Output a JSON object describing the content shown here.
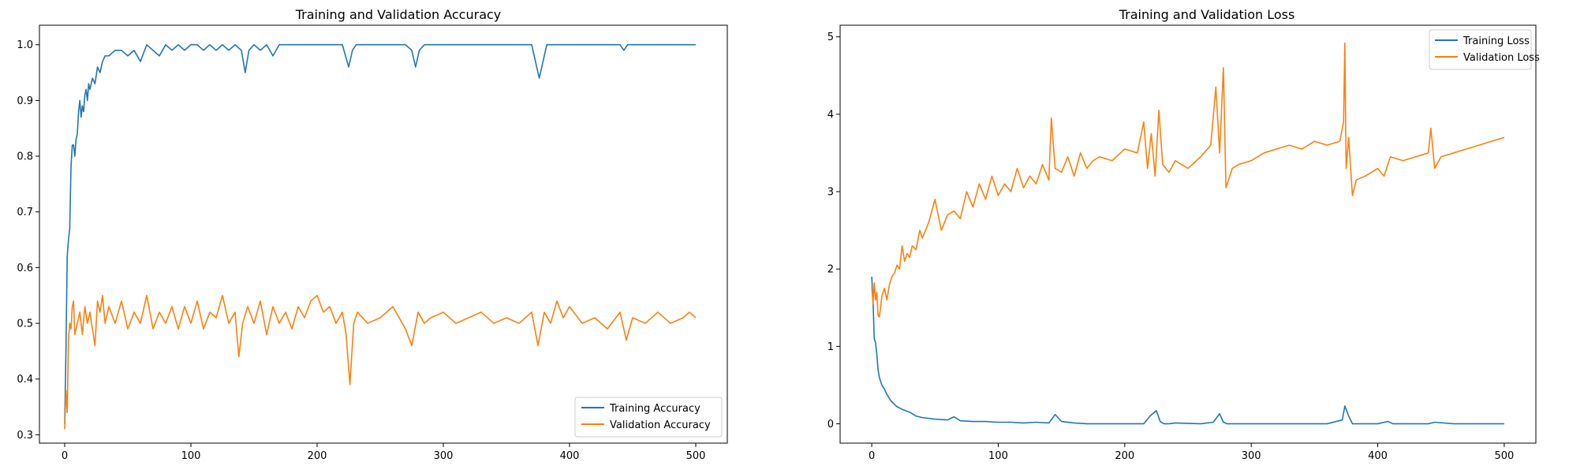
{
  "chart_data": [
    {
      "type": "line",
      "title": "Training and Validation Accuracy",
      "xlabel": "",
      "ylabel": "",
      "xlim": [
        -20,
        525
      ],
      "ylim": [
        0.285,
        1.035
      ],
      "xticks": [
        0,
        100,
        200,
        300,
        400,
        500
      ],
      "yticks": [
        0.3,
        0.4,
        0.5,
        0.6,
        0.7,
        0.8,
        0.9,
        1.0
      ],
      "ytick_labels": [
        "0.3",
        "0.4",
        "0.5",
        "0.6",
        "0.7",
        "0.8",
        "0.9",
        "1.0"
      ],
      "grid": false,
      "legend_position": "lower right",
      "series": [
        {
          "name": "Training Accuracy",
          "color": "#1f77b4",
          "x": [
            0,
            1,
            2,
            3,
            4,
            5,
            6,
            7,
            8,
            9,
            10,
            11,
            12,
            13,
            14,
            15,
            16,
            17,
            18,
            19,
            20,
            22,
            24,
            26,
            28,
            30,
            32,
            35,
            40,
            45,
            50,
            55,
            60,
            65,
            70,
            75,
            80,
            85,
            90,
            95,
            100,
            105,
            110,
            115,
            120,
            125,
            130,
            135,
            140,
            143,
            146,
            150,
            155,
            160,
            165,
            170,
            180,
            190,
            200,
            210,
            220,
            225,
            228,
            231,
            235,
            240,
            250,
            260,
            270,
            275,
            278,
            281,
            285,
            290,
            300,
            310,
            320,
            330,
            340,
            350,
            360,
            370,
            373,
            376,
            379,
            382,
            390,
            400,
            410,
            420,
            430,
            440,
            443,
            446,
            450,
            460,
            470,
            480,
            490,
            500
          ],
          "y": [
            0.32,
            0.45,
            0.62,
            0.65,
            0.67,
            0.78,
            0.82,
            0.82,
            0.8,
            0.83,
            0.84,
            0.88,
            0.9,
            0.87,
            0.89,
            0.88,
            0.91,
            0.92,
            0.9,
            0.93,
            0.92,
            0.94,
            0.93,
            0.96,
            0.95,
            0.97,
            0.98,
            0.98,
            0.99,
            0.99,
            0.98,
            0.99,
            0.97,
            1.0,
            0.99,
            0.98,
            1.0,
            0.99,
            1.0,
            0.99,
            1.0,
            1.0,
            0.99,
            1.0,
            0.99,
            1.0,
            0.99,
            1.0,
            0.99,
            0.95,
            0.99,
            1.0,
            0.99,
            1.0,
            0.98,
            1.0,
            1.0,
            1.0,
            1.0,
            1.0,
            1.0,
            0.96,
            0.99,
            1.0,
            1.0,
            1.0,
            1.0,
            1.0,
            1.0,
            0.99,
            0.96,
            0.99,
            1.0,
            1.0,
            1.0,
            1.0,
            1.0,
            1.0,
            1.0,
            1.0,
            1.0,
            1.0,
            0.97,
            0.94,
            0.97,
            1.0,
            1.0,
            1.0,
            1.0,
            1.0,
            1.0,
            1.0,
            0.99,
            1.0,
            1.0,
            1.0,
            1.0,
            1.0,
            1.0,
            1.0
          ]
        },
        {
          "name": "Validation Accuracy",
          "color": "#ff7f0e",
          "x": [
            0,
            1,
            2,
            3,
            4,
            5,
            6,
            7,
            8,
            10,
            12,
            14,
            16,
            18,
            20,
            22,
            24,
            26,
            28,
            30,
            32,
            35,
            40,
            45,
            50,
            55,
            60,
            65,
            70,
            75,
            80,
            85,
            90,
            95,
            100,
            105,
            110,
            115,
            120,
            125,
            130,
            135,
            138,
            141,
            145,
            150,
            155,
            160,
            165,
            170,
            175,
            180,
            185,
            190,
            195,
            200,
            205,
            210,
            215,
            220,
            223,
            226,
            229,
            232,
            240,
            250,
            260,
            270,
            275,
            280,
            285,
            290,
            300,
            310,
            320,
            330,
            340,
            350,
            360,
            370,
            375,
            380,
            385,
            390,
            395,
            400,
            410,
            420,
            430,
            440,
            445,
            450,
            460,
            470,
            480,
            490,
            495,
            500
          ],
          "y": [
            0.31,
            0.38,
            0.34,
            0.47,
            0.5,
            0.49,
            0.53,
            0.54,
            0.48,
            0.5,
            0.52,
            0.48,
            0.53,
            0.5,
            0.52,
            0.49,
            0.46,
            0.54,
            0.52,
            0.55,
            0.5,
            0.53,
            0.5,
            0.54,
            0.49,
            0.52,
            0.5,
            0.55,
            0.49,
            0.52,
            0.5,
            0.53,
            0.49,
            0.53,
            0.5,
            0.54,
            0.49,
            0.52,
            0.51,
            0.55,
            0.5,
            0.52,
            0.44,
            0.5,
            0.53,
            0.5,
            0.54,
            0.48,
            0.53,
            0.5,
            0.52,
            0.49,
            0.53,
            0.51,
            0.54,
            0.55,
            0.52,
            0.53,
            0.5,
            0.52,
            0.48,
            0.39,
            0.5,
            0.52,
            0.5,
            0.51,
            0.53,
            0.49,
            0.46,
            0.52,
            0.5,
            0.51,
            0.52,
            0.5,
            0.51,
            0.52,
            0.5,
            0.51,
            0.5,
            0.52,
            0.46,
            0.52,
            0.5,
            0.54,
            0.51,
            0.53,
            0.5,
            0.51,
            0.49,
            0.52,
            0.47,
            0.51,
            0.5,
            0.52,
            0.5,
            0.51,
            0.52,
            0.51
          ]
        }
      ]
    },
    {
      "type": "line",
      "title": "Training and Validation Loss",
      "xlabel": "",
      "ylabel": "",
      "xlim": [
        -25,
        525
      ],
      "ylim": [
        -0.25,
        5.15
      ],
      "xticks": [
        0,
        100,
        200,
        300,
        400,
        500
      ],
      "yticks": [
        0,
        1,
        2,
        3,
        4,
        5
      ],
      "grid": false,
      "legend_position": "upper right",
      "series": [
        {
          "name": "Training Loss",
          "color": "#1f77b4",
          "x": [
            0,
            1,
            2,
            3,
            4,
            5,
            6,
            7,
            8,
            10,
            12,
            15,
            18,
            20,
            25,
            30,
            35,
            40,
            50,
            60,
            65,
            70,
            80,
            90,
            100,
            110,
            120,
            130,
            140,
            145,
            150,
            160,
            170,
            180,
            200,
            215,
            220,
            225,
            228,
            231,
            235,
            240,
            260,
            270,
            275,
            278,
            281,
            285,
            300,
            320,
            340,
            360,
            372,
            374,
            377,
            380,
            400,
            408,
            412,
            440,
            445,
            460,
            480,
            500
          ],
          "y": [
            1.9,
            1.6,
            1.1,
            1.05,
            0.9,
            0.7,
            0.6,
            0.55,
            0.5,
            0.45,
            0.38,
            0.3,
            0.25,
            0.22,
            0.18,
            0.15,
            0.1,
            0.08,
            0.06,
            0.05,
            0.09,
            0.04,
            0.03,
            0.03,
            0.02,
            0.02,
            0.01,
            0.02,
            0.01,
            0.12,
            0.03,
            0.01,
            0.0,
            0.0,
            0.0,
            0.0,
            0.1,
            0.17,
            0.03,
            0.0,
            0.0,
            0.01,
            0.0,
            0.02,
            0.13,
            0.02,
            0.0,
            0.0,
            0.0,
            0.0,
            0.0,
            0.0,
            0.05,
            0.23,
            0.1,
            0.0,
            0.0,
            0.03,
            0.0,
            0.0,
            0.02,
            0.0,
            0.0,
            0.0
          ]
        },
        {
          "name": "Validation Loss",
          "color": "#ff7f0e",
          "x": [
            0,
            1,
            2,
            3,
            4,
            5,
            6,
            7,
            8,
            10,
            12,
            14,
            16,
            18,
            20,
            22,
            24,
            26,
            28,
            30,
            32,
            35,
            38,
            40,
            45,
            50,
            55,
            60,
            65,
            70,
            75,
            80,
            85,
            90,
            95,
            100,
            105,
            110,
            115,
            120,
            125,
            130,
            135,
            140,
            142,
            145,
            150,
            155,
            160,
            165,
            170,
            175,
            180,
            190,
            200,
            210,
            215,
            218,
            221,
            224,
            227,
            230,
            235,
            240,
            250,
            260,
            268,
            272,
            275,
            278,
            280,
            285,
            290,
            300,
            310,
            320,
            330,
            340,
            350,
            360,
            370,
            373,
            374,
            375,
            377,
            380,
            383,
            390,
            400,
            405,
            410,
            420,
            430,
            440,
            442,
            445,
            450,
            460,
            470,
            480,
            490,
            500
          ],
          "y": [
            1.78,
            1.55,
            1.82,
            1.6,
            1.7,
            1.4,
            1.38,
            1.5,
            1.65,
            1.75,
            1.6,
            1.8,
            1.9,
            1.95,
            2.05,
            2.0,
            2.3,
            2.1,
            2.2,
            2.15,
            2.3,
            2.25,
            2.5,
            2.4,
            2.6,
            2.9,
            2.5,
            2.7,
            2.75,
            2.65,
            3.0,
            2.8,
            3.1,
            2.9,
            3.2,
            2.95,
            3.1,
            3.0,
            3.3,
            3.05,
            3.2,
            3.1,
            3.35,
            3.15,
            3.95,
            3.3,
            3.25,
            3.45,
            3.2,
            3.5,
            3.3,
            3.4,
            3.45,
            3.4,
            3.55,
            3.5,
            3.9,
            3.3,
            3.75,
            3.2,
            4.05,
            3.35,
            3.25,
            3.4,
            3.3,
            3.45,
            3.6,
            4.35,
            3.5,
            4.6,
            3.05,
            3.3,
            3.35,
            3.4,
            3.5,
            3.55,
            3.6,
            3.55,
            3.65,
            3.6,
            3.65,
            3.9,
            4.92,
            3.3,
            3.7,
            2.95,
            3.15,
            3.2,
            3.3,
            3.2,
            3.45,
            3.4,
            3.45,
            3.5,
            3.82,
            3.3,
            3.45,
            3.5,
            3.55,
            3.6,
            3.65,
            3.7
          ]
        }
      ]
    }
  ]
}
